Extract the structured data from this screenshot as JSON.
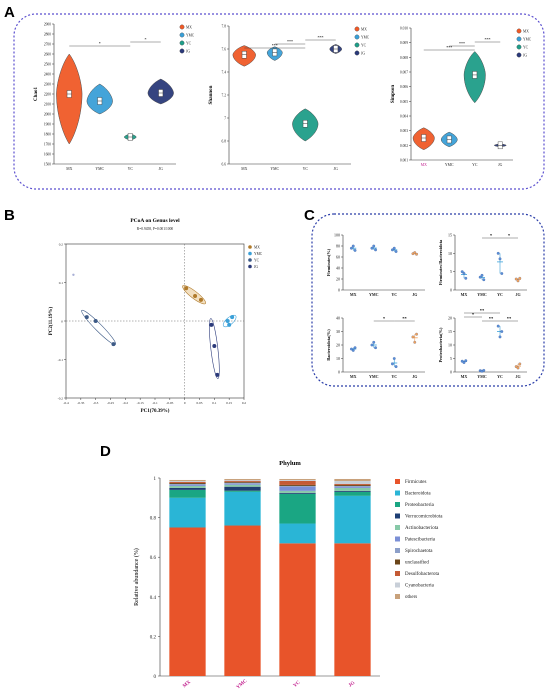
{
  "figure": {
    "panel_labels": {
      "a": "A",
      "b": "B",
      "c": "C",
      "d": "D"
    }
  },
  "colors": {
    "MX": "#f05a28",
    "YMC": "#3aa0d8",
    "YC": "#1f9e89",
    "JG": "#2b3a7a",
    "JG_light": "#f2a35c",
    "frame": "#5b4fcf",
    "frame_c": "#2a3da8"
  },
  "chart_data": [
    {
      "id": "A1",
      "type": "violin",
      "ylabel": "Chao1",
      "categories": [
        "MX",
        "YMC",
        "YC",
        "JG"
      ],
      "ylim": [
        1500,
        2900
      ],
      "yticks": [
        1500,
        1600,
        1700,
        1800,
        1900,
        2000,
        2100,
        2200,
        2300,
        2400,
        2500,
        2600,
        2700,
        2800,
        2900
      ],
      "medians": [
        2200,
        2130,
        1770,
        2210
      ],
      "ranges": [
        [
          1700,
          2600
        ],
        [
          2000,
          2300
        ],
        [
          1740,
          1800
        ],
        [
          2100,
          2350
        ]
      ],
      "legend": [
        "MX",
        "YMC",
        "YC",
        "JG"
      ],
      "significance": [
        {
          "a": 0,
          "b": 2,
          "label": "*"
        },
        {
          "a": 2,
          "b": 3,
          "label": "*"
        }
      ]
    },
    {
      "id": "A2",
      "type": "violin",
      "ylabel": "Shannon",
      "categories": [
        "MX",
        "YMC",
        "YC",
        "JG"
      ],
      "ylim": [
        6.6,
        7.8
      ],
      "yticks": [
        6.6,
        6.8,
        7.0,
        7.2,
        7.4,
        7.6,
        7.8
      ],
      "medians": [
        7.55,
        7.57,
        6.95,
        7.6
      ],
      "ranges": [
        [
          7.45,
          7.63
        ],
        [
          7.5,
          7.62
        ],
        [
          6.8,
          7.08
        ],
        [
          7.56,
          7.64
        ]
      ],
      "legend": [
        "MX",
        "YMC",
        "YC",
        "JG"
      ],
      "significance": [
        {
          "a": 0,
          "b": 2,
          "label": "***"
        },
        {
          "a": 1,
          "b": 2,
          "label": "***"
        },
        {
          "a": 2,
          "b": 3,
          "label": "***"
        }
      ]
    },
    {
      "id": "A3",
      "type": "violin",
      "ylabel": "Simpson",
      "categories": [
        "MX",
        "YMC",
        "YC",
        "JG"
      ],
      "ylim": [
        0.001,
        0.01
      ],
      "yticks": [
        0.001,
        0.002,
        0.003,
        0.004,
        0.005,
        0.006,
        0.007,
        0.008,
        0.009,
        0.01
      ],
      "ytick_labels": [
        "0.001",
        "0.002",
        "0.003",
        "0.004",
        "0.005",
        "0.006",
        "0.007",
        "0.008",
        "0.009",
        "0.010"
      ],
      "medians": [
        0.0025,
        0.0024,
        0.0068,
        0.002
      ],
      "ranges": [
        [
          0.0017,
          0.0032
        ],
        [
          0.0019,
          0.0029
        ],
        [
          0.0049,
          0.0084
        ],
        [
          0.0019,
          0.0021
        ]
      ],
      "legend": [
        "MX",
        "YMC",
        "YC",
        "JG"
      ],
      "significance": [
        {
          "a": 0,
          "b": 2,
          "label": "***"
        },
        {
          "a": 1,
          "b": 2,
          "label": "***"
        },
        {
          "a": 2,
          "b": 3,
          "label": "***"
        }
      ]
    },
    {
      "id": "B",
      "type": "scatter",
      "title": "PCoA on Genus level",
      "subtitle": "R=0.9458, P=0.001/1000",
      "xlabel": "PC1(70.39%)",
      "ylabel": "PC2(11.19%)",
      "xlim": [
        -0.4,
        0.2
      ],
      "ylim": [
        -0.2,
        0.2
      ],
      "xticks": [
        -0.4,
        -0.35,
        -0.3,
        -0.25,
        -0.2,
        -0.15,
        -0.1,
        -0.05,
        0,
        0.05,
        0.1,
        0.15,
        0.2
      ],
      "xtick_labels": [
        "-0.4",
        "-0.35",
        "-0.3",
        "-0.25",
        "-0.2",
        "-0.15",
        "-0.1",
        "-0.05",
        "0",
        "0.05",
        "0.1",
        "0.15",
        "0.2"
      ],
      "yticks": [
        -0.2,
        -0.1,
        0,
        0.1,
        0.2
      ],
      "legend": [
        "MX",
        "YMC",
        "YC",
        "JG"
      ],
      "series": [
        {
          "name": "MX",
          "points": [
            [
              0.005,
              0.085
            ],
            [
              0.035,
              0.065
            ],
            [
              0.055,
              0.055
            ]
          ]
        },
        {
          "name": "YMC",
          "points": [
            [
              0.145,
              0.0
            ],
            [
              0.15,
              -0.01
            ],
            [
              0.16,
              0.01
            ]
          ]
        },
        {
          "name": "YC",
          "points": [
            [
              -0.33,
              0.01
            ],
            [
              -0.3,
              0.0
            ],
            [
              -0.24,
              -0.06
            ]
          ]
        },
        {
          "name": "JG",
          "points": [
            [
              0.09,
              -0.01
            ],
            [
              0.1,
              -0.065
            ],
            [
              0.11,
              -0.14
            ]
          ]
        }
      ],
      "extra_points": [
        [
          -0.375,
          0.12
        ]
      ]
    },
    {
      "id": "C1",
      "type": "scatter",
      "ylabel": "Firmicutes(%)",
      "categories": [
        "MX",
        "YMC",
        "YC",
        "JG"
      ],
      "ylim": [
        0,
        100
      ],
      "yticks": [
        0,
        20,
        40,
        60,
        80,
        100
      ],
      "points": [
        [
          76,
          80,
          72
        ],
        [
          76,
          80,
          73
        ],
        [
          73,
          76,
          70
        ],
        [
          66,
          68,
          65
        ]
      ],
      "significance": []
    },
    {
      "id": "C2",
      "type": "scatter",
      "ylabel": "Firmicutes/Bacteroidota",
      "categories": [
        "MX",
        "YMC",
        "YC",
        "JG"
      ],
      "ylim": [
        0,
        15
      ],
      "yticks": [
        0,
        5,
        10,
        15
      ],
      "points": [
        [
          5,
          4.5,
          3.2
        ],
        [
          3.5,
          4.0,
          2.8
        ],
        [
          10,
          8.5,
          4.5
        ],
        [
          3.0,
          2.5,
          3.2
        ]
      ],
      "significance": [
        {
          "a": 1,
          "b": 2,
          "label": "*",
          "level": 0
        },
        {
          "a": 2,
          "b": 3,
          "label": "*",
          "level": 0
        }
      ]
    },
    {
      "id": "C3",
      "type": "scatter",
      "ylabel": "Bacteroidota(%)",
      "categories": [
        "MX",
        "YMC",
        "YC",
        "JG"
      ],
      "ylim": [
        0,
        40
      ],
      "yticks": [
        0,
        10,
        20,
        30,
        40
      ],
      "points": [
        [
          17,
          16,
          18
        ],
        [
          20,
          22,
          18
        ],
        [
          6,
          10,
          4
        ],
        [
          26,
          22,
          28
        ]
      ],
      "significance": [
        {
          "a": 1,
          "b": 2,
          "label": "*",
          "level": 0
        },
        {
          "a": 2,
          "b": 3,
          "label": "**",
          "level": 0
        }
      ]
    },
    {
      "id": "C4",
      "type": "scatter",
      "ylabel": "Proteobacteria(%)",
      "categories": [
        "MX",
        "YMC",
        "YC",
        "JG"
      ],
      "ylim": [
        0,
        20
      ],
      "yticks": [
        0,
        5,
        10,
        15,
        20
      ],
      "points": [
        [
          4,
          3.5,
          4.2
        ],
        [
          0.5,
          0.3,
          0.6
        ],
        [
          17,
          13,
          15
        ],
        [
          2,
          1.5,
          3
        ]
      ],
      "significance": [
        {
          "a": 0,
          "b": 2,
          "label": "**",
          "level": 2
        },
        {
          "a": 0,
          "b": 1,
          "label": "*",
          "level": 1
        },
        {
          "a": 1,
          "b": 2,
          "label": "**",
          "level": 0
        },
        {
          "a": 2,
          "b": 3,
          "label": "**",
          "level": 0
        }
      ]
    },
    {
      "id": "D",
      "type": "bar",
      "stacked": true,
      "title": "Phylum",
      "ylabel": "Relative abundance (%)",
      "categories": [
        "MX",
        "YMC",
        "YC",
        "JG"
      ],
      "ylim": [
        0,
        1
      ],
      "yticks": [
        0,
        0.2,
        0.4,
        0.6,
        0.8,
        1
      ],
      "ytick_labels": [
        "0",
        "0.2",
        "0.4",
        "0.6",
        "0.8",
        "1"
      ],
      "series": [
        {
          "name": "Firmicutes",
          "color": "#e8542a",
          "values": [
            0.75,
            0.76,
            0.67,
            0.67
          ]
        },
        {
          "name": "Bacteroidota",
          "color": "#2ab5d6",
          "values": [
            0.15,
            0.17,
            0.1,
            0.24
          ]
        },
        {
          "name": "Proteobacteria",
          "color": "#1aa683",
          "values": [
            0.04,
            0.006,
            0.15,
            0.02
          ]
        },
        {
          "name": "Verrucomicrobiota",
          "color": "#1e3f74",
          "values": [
            0.01,
            0.02,
            0.005,
            0.005
          ]
        },
        {
          "name": "Actinobacteriota",
          "color": "#87c9a8",
          "values": [
            0.01,
            0.01,
            0.01,
            0.015
          ]
        },
        {
          "name": "Patescibacteria",
          "color": "#7b8fd6",
          "values": [
            0.005,
            0.005,
            0.02,
            0.005
          ]
        },
        {
          "name": "Spirochaetota",
          "color": "#8c9fc9",
          "values": [
            0.005,
            0.005,
            0.005,
            0.005
          ]
        },
        {
          "name": "unclassified",
          "color": "#6a4518",
          "values": [
            0.005,
            0.005,
            0.005,
            0.005
          ]
        },
        {
          "name": "Desulfobacterota",
          "color": "#c45a35",
          "values": [
            0.005,
            0.005,
            0.02,
            0.005
          ]
        },
        {
          "name": "Cyanobacteria",
          "color": "#c8cfd8",
          "values": [
            0.005,
            0.004,
            0.005,
            0.015
          ]
        },
        {
          "name": "others",
          "color": "#c8a17b",
          "values": [
            0.005,
            0.005,
            0.005,
            0.01
          ]
        }
      ]
    }
  ]
}
